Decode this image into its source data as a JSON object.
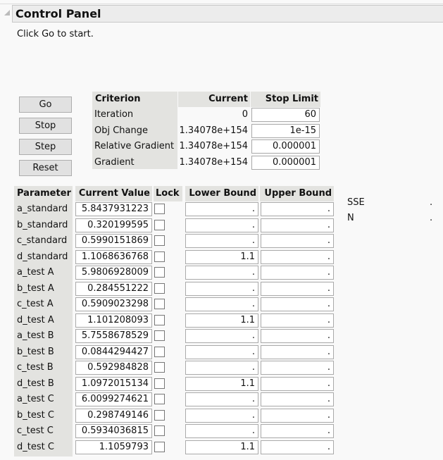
{
  "panel": {
    "title": "Control Panel",
    "hint": "Click Go to start."
  },
  "buttons": {
    "go": "Go",
    "stop": "Stop",
    "step": "Step",
    "reset": "Reset"
  },
  "criterion": {
    "headers": [
      "Criterion",
      "Current",
      "Stop Limit"
    ],
    "rows": [
      {
        "name": "Iteration",
        "current": "0",
        "limit": "60"
      },
      {
        "name": "Obj Change",
        "current": "1.34078e+154",
        "limit": "1e-15"
      },
      {
        "name": "Relative Gradient",
        "current": "1.34078e+154",
        "limit": "0.000001"
      },
      {
        "name": "Gradient",
        "current": "1.34078e+154",
        "limit": "0.000001"
      }
    ]
  },
  "params": {
    "headers": [
      "Parameter",
      "Current Value",
      "Lock",
      "Lower Bound",
      "Upper Bound"
    ],
    "rows": [
      {
        "name": "a_standard",
        "value": "5.8437931223",
        "lock": false,
        "lower": ".",
        "upper": "."
      },
      {
        "name": "b_standard",
        "value": "0.320199595",
        "lock": false,
        "lower": ".",
        "upper": "."
      },
      {
        "name": "c_standard",
        "value": "0.5990151869",
        "lock": false,
        "lower": ".",
        "upper": "."
      },
      {
        "name": "d_standard",
        "value": "1.1068636768",
        "lock": false,
        "lower": "1.1",
        "upper": "."
      },
      {
        "name": "a_test A",
        "value": "5.9806928009",
        "lock": false,
        "lower": ".",
        "upper": "."
      },
      {
        "name": "b_test A",
        "value": "0.284551222",
        "lock": false,
        "lower": ".",
        "upper": "."
      },
      {
        "name": "c_test A",
        "value": "0.5909023298",
        "lock": false,
        "lower": ".",
        "upper": "."
      },
      {
        "name": "d_test A",
        "value": "1.101208093",
        "lock": false,
        "lower": "1.1",
        "upper": "."
      },
      {
        "name": "a_test B",
        "value": "5.7558678529",
        "lock": false,
        "lower": ".",
        "upper": "."
      },
      {
        "name": "b_test B",
        "value": "0.0844294427",
        "lock": false,
        "lower": ".",
        "upper": "."
      },
      {
        "name": "c_test B",
        "value": "0.592984828",
        "lock": false,
        "lower": ".",
        "upper": "."
      },
      {
        "name": "d_test B",
        "value": "1.0972015134",
        "lock": false,
        "lower": "1.1",
        "upper": "."
      },
      {
        "name": "a_test C",
        "value": "6.0099274621",
        "lock": false,
        "lower": ".",
        "upper": "."
      },
      {
        "name": "b_test C",
        "value": "0.298749146",
        "lock": false,
        "lower": ".",
        "upper": "."
      },
      {
        "name": "c_test C",
        "value": "0.5934036815",
        "lock": false,
        "lower": ".",
        "upper": "."
      },
      {
        "name": "d_test C",
        "value": "1.1059793",
        "lock": false,
        "lower": "1.1",
        "upper": "."
      }
    ]
  },
  "stats": [
    {
      "label": "SSE",
      "value": "."
    },
    {
      "label": "N",
      "value": "."
    }
  ]
}
